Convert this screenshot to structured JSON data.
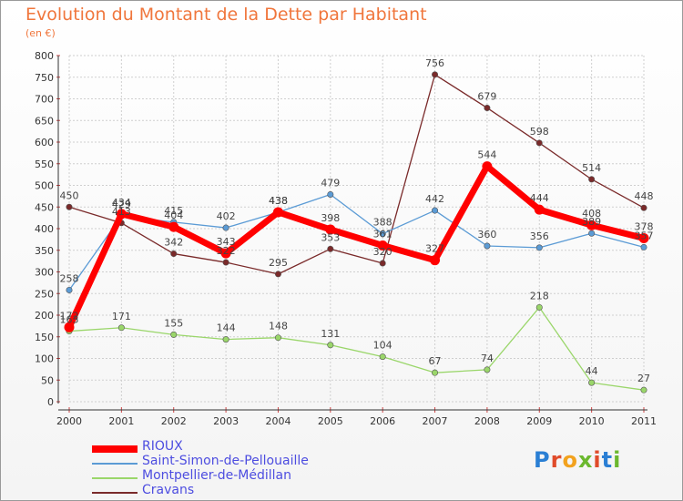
{
  "title": "Evolution du Montant de la Dette par Habitant",
  "unit": "(en €)",
  "logo": "Proxiti",
  "colors": {
    "title": "#f0763c",
    "grid": "#cfcfcf",
    "legend_text": "#4d4de0"
  },
  "chart_data": {
    "type": "line",
    "title": "Evolution du Montant de la Dette par Habitant",
    "ylabel": "(en €)",
    "xlabel": "",
    "categories": [
      "2000",
      "2001",
      "2002",
      "2003",
      "2004",
      "2005",
      "2006",
      "2007",
      "2008",
      "2009",
      "2010",
      "2011"
    ],
    "ylim": [
      0,
      800
    ],
    "yticks": [
      0,
      50,
      100,
      150,
      200,
      250,
      300,
      350,
      400,
      450,
      500,
      550,
      600,
      650,
      700,
      750,
      800
    ],
    "grid": true,
    "legend_position": "bottom-left",
    "series": [
      {
        "name": "RIOUX",
        "color": "#ff0000",
        "values": [
          172,
          434,
          404,
          343,
          438,
          398,
          361,
          327,
          544,
          444,
          408,
          378
        ]
      },
      {
        "name": "Saint-Simon-de-Pellouaille",
        "color": "#5b9bd5",
        "values": [
          258,
          429,
          415,
          402,
          438,
          479,
          388,
          442,
          360,
          356,
          389,
          357
        ]
      },
      {
        "name": "Montpellier-de-Médillan",
        "color": "#9ad66a",
        "values": [
          163,
          171,
          155,
          144,
          148,
          131,
          104,
          67,
          74,
          218,
          44,
          27
        ]
      },
      {
        "name": "Cravans",
        "color": "#7a2a2a",
        "values": [
          450,
          413,
          342,
          322,
          295,
          353,
          320,
          756,
          679,
          598,
          514,
          448
        ]
      }
    ]
  }
}
